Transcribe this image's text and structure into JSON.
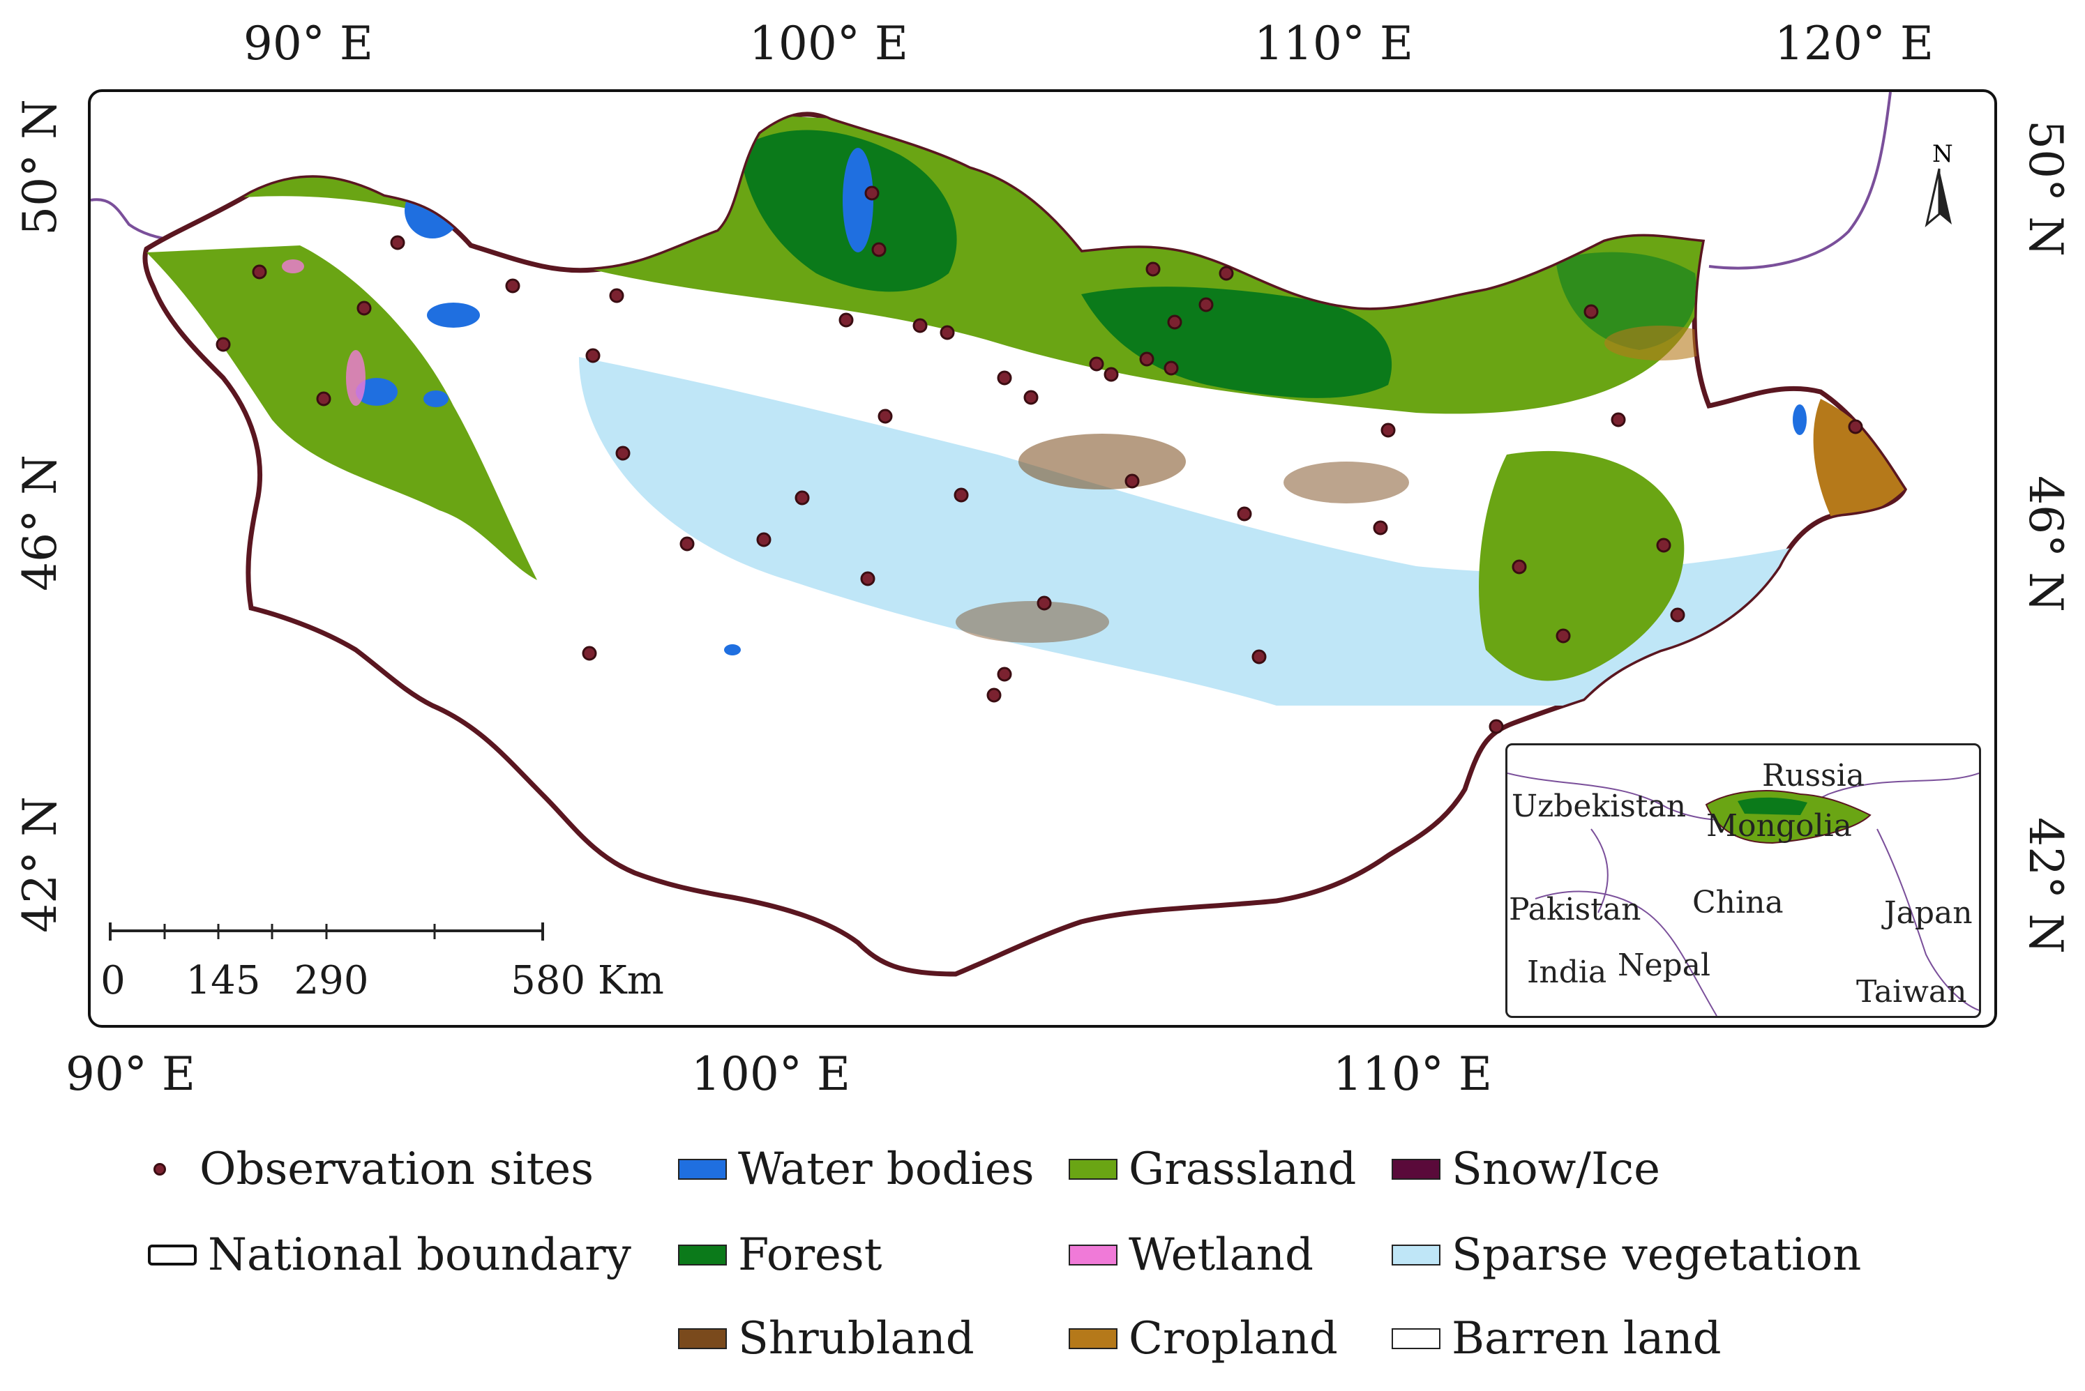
{
  "map": {
    "top_lon_labels": [
      "90° E",
      "100° E",
      "110° E",
      "120° E"
    ],
    "bottom_lon_labels": [
      "90° E",
      "100° E",
      "110° E"
    ],
    "left_lat_labels": [
      "50° N",
      "46° N",
      "42° N"
    ],
    "right_lat_labels": [
      "50° N",
      "46° N",
      "42° N"
    ],
    "north_arrow_label": "N",
    "scale_bar": {
      "ticks": [
        "0",
        "145",
        "290",
        "580 Km"
      ]
    },
    "inset_labels": [
      "Russia",
      "Uzbekistan",
      "Mongolia",
      "Pakistan",
      "China",
      "Japan",
      "India",
      "Nepal",
      "Taiwan"
    ]
  },
  "legend": {
    "observation_sites": "Observation sites",
    "national_boundary": "National boundary",
    "water_bodies": "Water bodies",
    "forest": "Forest",
    "shrubland": "Shrubland",
    "grassland": "Grassland",
    "wetland": "Wetland",
    "cropland": "Cropland",
    "snow_ice": "Snow/Ice",
    "sparse_vegetation": "Sparse vegetation",
    "barren_land": "Barren land"
  },
  "colors": {
    "water": "#1f6fe0",
    "forest": "#0b7a1a",
    "shrubland": "#7a4a1c",
    "grassland": "#6aa514",
    "wetland": "#f07ad8",
    "cropland": "#b5791a",
    "snow_ice": "#5a0a3a",
    "sparse_vegetation": "#bfe6f7",
    "barren": "#ffffff",
    "site": "#7b2230",
    "boundary": "#5a1620",
    "neighbor_border": "#7a4f9a"
  }
}
